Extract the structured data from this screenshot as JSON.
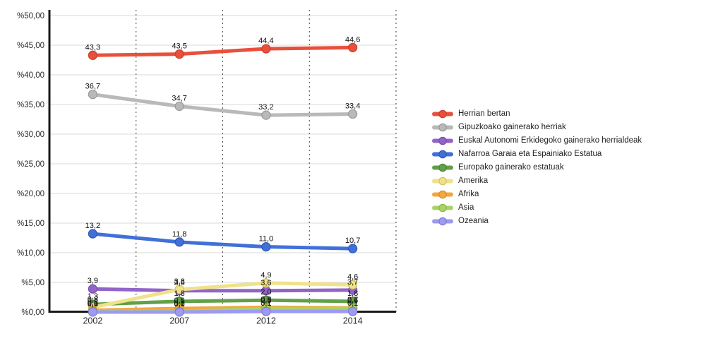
{
  "chart_data": {
    "type": "line",
    "title": "",
    "xlabel": "",
    "ylabel": "",
    "categories": [
      "2002",
      "2007",
      "2012",
      "2014"
    ],
    "ylim": [
      0,
      50
    ],
    "grid": "horizontal-solid-light, vertical-dashed-category-separators",
    "legend_position": "right",
    "y_ticks": [
      {
        "v": 0,
        "label": "%0,00"
      },
      {
        "v": 5,
        "label": "%5,00"
      },
      {
        "v": 10,
        "label": "%10,00"
      },
      {
        "v": 15,
        "label": "%15,00"
      },
      {
        "v": 20,
        "label": "%20,00"
      },
      {
        "v": 25,
        "label": "%25,00"
      },
      {
        "v": 30,
        "label": "%30,00"
      },
      {
        "v": 35,
        "label": "%35,00"
      },
      {
        "v": 40,
        "label": "%40,00"
      },
      {
        "v": 45,
        "label": "%45,00"
      },
      {
        "v": 50,
        "label": "%50,00"
      }
    ],
    "series": [
      {
        "name": "Herrian bertan",
        "color": "#e8503c",
        "dark": "#c93d2a",
        "values": [
          43.3,
          43.5,
          44.4,
          44.6
        ],
        "labels": [
          "43,3",
          "43,5",
          "44,4",
          "44,6"
        ]
      },
      {
        "name": "Gipuzkoako gainerako herriak",
        "color": "#b9b9b9",
        "dark": "#989898",
        "values": [
          36.7,
          34.7,
          33.2,
          33.4
        ],
        "labels": [
          "36,7",
          "34,7",
          "33,2",
          "33,4"
        ]
      },
      {
        "name": "Euskal Autonomi Erkidegoko gainerako herrialdeak",
        "color": "#9264c8",
        "dark": "#7a4cab",
        "values": [
          3.9,
          3.6,
          3.6,
          3.7
        ],
        "labels": [
          "3,9",
          "3,6",
          "3,6",
          "3,7"
        ]
      },
      {
        "name": "Nafarroa Garaia eta Espainiako Estatua",
        "color": "#4170d8",
        "dark": "#2f57b4",
        "values": [
          13.2,
          11.8,
          11.0,
          10.7
        ],
        "labels": [
          "13,2",
          "11,8",
          "11,0",
          "10,7"
        ]
      },
      {
        "name": "Europako gainerako estatuak",
        "color": "#61a048",
        "dark": "#4c8336",
        "values": [
          1.3,
          1.8,
          2.0,
          1.8
        ],
        "labels": [
          "1,3",
          "1,8",
          "2,0",
          "1,8"
        ]
      },
      {
        "name": "Amerika",
        "color": "#efe28a",
        "dark": "#d2c25e",
        "values": [
          0.8,
          3.8,
          4.9,
          4.6
        ],
        "labels": [
          "0,8",
          "3,8",
          "4,9",
          "4,6"
        ]
      },
      {
        "name": "Afrika",
        "color": "#f3a73f",
        "dark": "#d88c24",
        "values": [
          0.3,
          0.6,
          0.8,
          0.7
        ],
        "labels": [
          "0,3",
          "0,6",
          "0,8",
          "0,7"
        ]
      },
      {
        "name": "Asia",
        "color": "#a9d266",
        "dark": "#8cb64a",
        "values": [
          0.1,
          0.1,
          0.6,
          0.6
        ],
        "labels": [
          "0,1",
          "0,1",
          "0,6",
          "0,6"
        ]
      },
      {
        "name": "Ozeania",
        "color": "#9e9af0",
        "dark": "#7f7bd6",
        "values": [
          0.0,
          0.0,
          0.1,
          0.1
        ],
        "labels": [
          "0,0",
          "0,0",
          "0,1",
          "0,1"
        ]
      }
    ],
    "colors": {
      "grid_line": "#d9d9d9",
      "separator_line": "#3a3a3a",
      "axis_line": "#1a1a1a",
      "tick_text": "#2b2b2b",
      "value_label_text": "#111111"
    }
  }
}
